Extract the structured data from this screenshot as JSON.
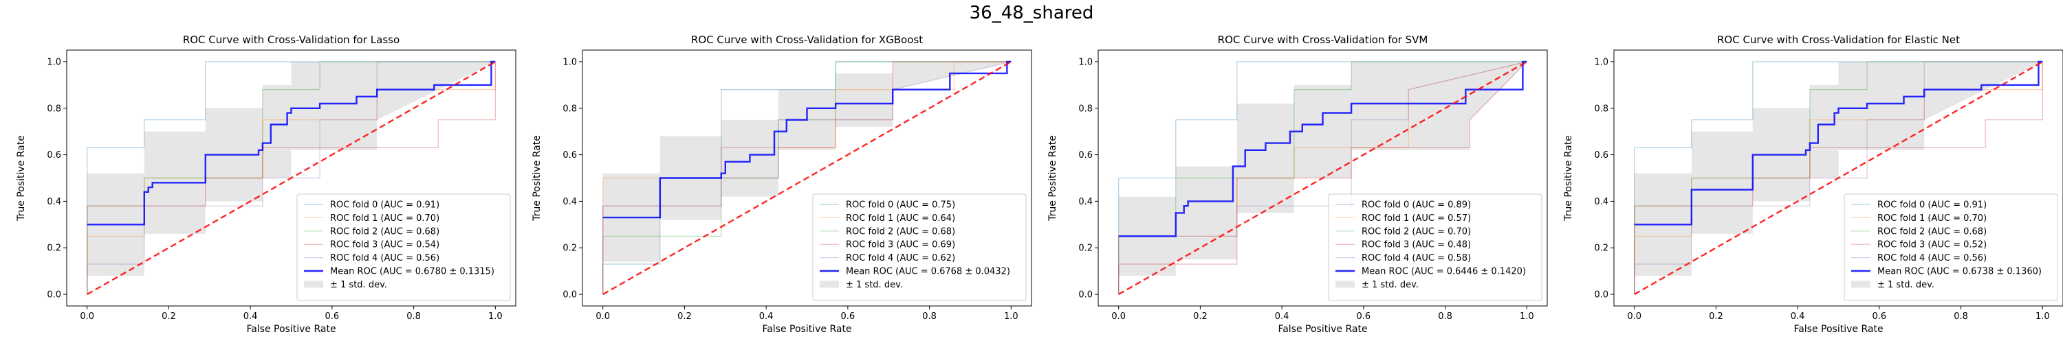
{
  "figure": {
    "suptitle": "36_48_shared"
  },
  "chart_data": [
    {
      "type": "line",
      "title": "ROC Curve with Cross-Validation for Lasso",
      "xlabel": "False Positive Rate",
      "ylabel": "True Positive Rate",
      "xlim": [
        -0.05,
        1.05
      ],
      "ylim": [
        -0.05,
        1.05
      ],
      "xticks": [
        "0.0",
        "0.2",
        "0.4",
        "0.6",
        "0.8",
        "1.0"
      ],
      "yticks": [
        "0.0",
        "0.2",
        "0.4",
        "0.6",
        "0.8",
        "1.0"
      ],
      "legend_position": "lower-right",
      "series": [
        {
          "name": "ROC fold 0 (AUC = 0.91)",
          "color": "#1f77b4",
          "x": [
            0,
            0,
            0.14,
            0.14,
            0.29,
            0.29,
            1
          ],
          "y": [
            0,
            0.63,
            0.63,
            0.75,
            0.75,
            1,
            1
          ]
        },
        {
          "name": "ROC fold 1 (AUC = 0.70)",
          "color": "#ff7f0e",
          "x": [
            0,
            0,
            0.14,
            0.14,
            0.43,
            0.43,
            0.71,
            0.71,
            1,
            1
          ],
          "y": [
            0,
            0.25,
            0.25,
            0.5,
            0.5,
            0.75,
            0.75,
            0.88,
            0.88,
            1
          ]
        },
        {
          "name": "ROC fold 2 (AUC = 0.68)",
          "color": "#2ca02c",
          "x": [
            0,
            0,
            0.14,
            0.14,
            0.43,
            0.43,
            0.57,
            0.57,
            1
          ],
          "y": [
            0,
            0.38,
            0.38,
            0.5,
            0.5,
            0.88,
            0.88,
            1,
            1
          ]
        },
        {
          "name": "ROC fold 3 (AUC = 0.54)",
          "color": "#d62728",
          "x": [
            0,
            0,
            0.29,
            0.29,
            0.43,
            0.43,
            0.86,
            0.86,
            1,
            1
          ],
          "y": [
            0,
            0.38,
            0.38,
            0.5,
            0.5,
            0.63,
            0.63,
            0.75,
            0.75,
            1
          ]
        },
        {
          "name": "ROC fold 4 (AUC = 0.56)",
          "color": "#9467bd",
          "x": [
            0,
            0,
            0.14,
            0.14,
            0.43,
            0.43,
            0.57,
            0.57,
            0.71,
            0.71,
            1
          ],
          "y": [
            0,
            0.13,
            0.13,
            0.38,
            0.38,
            0.5,
            0.5,
            0.75,
            0.75,
            1,
            1
          ]
        },
        {
          "name": "Mean ROC (AUC = 0.6780 ± 0.1315)",
          "color": "#0000ff",
          "role": "mean",
          "x": [
            0,
            0.14,
            0.14,
            0.15,
            0.15,
            0.16,
            0.16,
            0.29,
            0.29,
            0.42,
            0.42,
            0.43,
            0.43,
            0.45,
            0.45,
            0.49,
            0.49,
            0.5,
            0.5,
            0.57,
            0.57,
            0.66,
            0.66,
            0.71,
            0.71,
            0.85,
            0.85,
            0.99,
            0.99,
            1.0
          ],
          "y": [
            0.3,
            0.3,
            0.44,
            0.44,
            0.46,
            0.46,
            0.48,
            0.48,
            0.6,
            0.6,
            0.62,
            0.62,
            0.65,
            0.65,
            0.73,
            0.73,
            0.78,
            0.78,
            0.8,
            0.8,
            0.82,
            0.82,
            0.85,
            0.85,
            0.88,
            0.88,
            0.9,
            0.9,
            1.0,
            1.0
          ]
        }
      ],
      "std_band": {
        "name": "± 1 std. dev.",
        "color": "#808080",
        "x": [
          0,
          0.14,
          0.14,
          0.29,
          0.29,
          0.43,
          0.43,
          0.5,
          0.5,
          0.71,
          0.71,
          1.0
        ],
        "upper": [
          0.52,
          0.52,
          0.7,
          0.7,
          0.8,
          0.8,
          0.9,
          0.9,
          1.0,
          1.0,
          1.0,
          1.0
        ],
        "lower": [
          0.08,
          0.08,
          0.26,
          0.26,
          0.4,
          0.4,
          0.5,
          0.5,
          0.62,
          0.62,
          0.75,
          1.0
        ]
      },
      "chance_line": {
        "color": "#ff0000",
        "x": [
          0,
          1
        ],
        "y": [
          0,
          1
        ]
      }
    },
    {
      "type": "line",
      "title": "ROC Curve with Cross-Validation for XGBoost",
      "xlabel": "False Positive Rate",
      "ylabel": "True Positive Rate",
      "xlim": [
        -0.05,
        1.05
      ],
      "ylim": [
        -0.05,
        1.05
      ],
      "xticks": [
        "0.0",
        "0.2",
        "0.4",
        "0.6",
        "0.8",
        "1.0"
      ],
      "yticks": [
        "0.0",
        "0.2",
        "0.4",
        "0.6",
        "0.8",
        "1.0"
      ],
      "legend_position": "lower-right",
      "series": [
        {
          "name": "ROC fold 0 (AUC = 0.75)",
          "color": "#1f77b4",
          "x": [
            0,
            0,
            0.14,
            0.14,
            0.29,
            0.29,
            0.57,
            0.57,
            1
          ],
          "y": [
            0,
            0.13,
            0.13,
            0.5,
            0.5,
            0.88,
            0.88,
            1,
            1
          ]
        },
        {
          "name": "ROC fold 1 (AUC = 0.64)",
          "color": "#ff7f0e",
          "x": [
            0,
            0,
            0.43,
            0.43,
            0.57,
            0.57,
            0.86,
            0.86,
            1
          ],
          "y": [
            0,
            0.5,
            0.5,
            0.63,
            0.63,
            0.88,
            0.88,
            1,
            1
          ]
        },
        {
          "name": "ROC fold 2 (AUC = 0.68)",
          "color": "#2ca02c",
          "x": [
            0,
            0,
            0.29,
            0.29,
            0.43,
            0.43,
            0.57,
            0.57,
            1
          ],
          "y": [
            0,
            0.25,
            0.25,
            0.5,
            0.5,
            0.75,
            0.75,
            1,
            1
          ]
        },
        {
          "name": "ROC fold 3 (AUC = 0.69)",
          "color": "#d62728",
          "x": [
            0,
            0,
            0.29,
            0.29,
            0.57,
            0.57,
            0.71,
            0.71,
            1
          ],
          "y": [
            0,
            0.38,
            0.38,
            0.63,
            0.63,
            0.75,
            0.75,
            1,
            1
          ]
        },
        {
          "name": "ROC fold 4 (AUC = 0.62)",
          "color": "#9467bd",
          "x": [
            0,
            0,
            0.29,
            0.29,
            0.43,
            0.43,
            0.71,
            0.71,
            1
          ],
          "y": [
            0,
            0.38,
            0.38,
            0.5,
            0.5,
            0.75,
            0.75,
            0.88,
            1
          ]
        },
        {
          "name": "Mean ROC (AUC = 0.6768 ± 0.0432)",
          "color": "#0000ff",
          "role": "mean",
          "x": [
            0,
            0.14,
            0.14,
            0.29,
            0.29,
            0.3,
            0.3,
            0.36,
            0.36,
            0.42,
            0.42,
            0.45,
            0.45,
            0.5,
            0.5,
            0.57,
            0.57,
            0.71,
            0.71,
            0.85,
            0.85,
            0.99,
            0.99,
            1.0
          ],
          "y": [
            0.33,
            0.33,
            0.5,
            0.5,
            0.52,
            0.52,
            0.57,
            0.57,
            0.6,
            0.6,
            0.7,
            0.7,
            0.75,
            0.75,
            0.8,
            0.8,
            0.82,
            0.82,
            0.88,
            0.88,
            0.95,
            0.95,
            1.0,
            1.0
          ]
        }
      ],
      "std_band": {
        "name": "± 1 std. dev.",
        "color": "#808080",
        "x": [
          0,
          0.14,
          0.14,
          0.29,
          0.29,
          0.43,
          0.43,
          0.57,
          0.57,
          0.71,
          0.71,
          1.0
        ],
        "upper": [
          0.52,
          0.52,
          0.68,
          0.68,
          0.75,
          0.75,
          0.88,
          0.88,
          0.95,
          0.95,
          1.0,
          1.0
        ],
        "lower": [
          0.14,
          0.14,
          0.32,
          0.32,
          0.42,
          0.42,
          0.62,
          0.62,
          0.72,
          0.72,
          0.88,
          1.0
        ]
      },
      "chance_line": {
        "color": "#ff0000",
        "x": [
          0,
          1
        ],
        "y": [
          0,
          1
        ]
      }
    },
    {
      "type": "line",
      "title": "ROC Curve with Cross-Validation for SVM",
      "xlabel": "False Positive Rate",
      "ylabel": "True Positive Rate",
      "xlim": [
        -0.05,
        1.05
      ],
      "ylim": [
        -0.05,
        1.05
      ],
      "xticks": [
        "0.0",
        "0.2",
        "0.4",
        "0.6",
        "0.8",
        "1.0"
      ],
      "yticks": [
        "0.0",
        "0.2",
        "0.4",
        "0.6",
        "0.8",
        "1.0"
      ],
      "legend_position": "lower-right",
      "series": [
        {
          "name": "ROC fold 0 (AUC = 0.89)",
          "color": "#1f77b4",
          "x": [
            0,
            0,
            0.14,
            0.14,
            0.29,
            0.29,
            1
          ],
          "y": [
            0,
            0.5,
            0.5,
            0.75,
            0.75,
            1,
            1
          ]
        },
        {
          "name": "ROC fold 1 (AUC = 0.57)",
          "color": "#ff7f0e",
          "x": [
            0,
            0,
            0.29,
            0.29,
            0.43,
            0.43,
            0.71,
            0.71,
            1
          ],
          "y": [
            0,
            0.25,
            0.25,
            0.5,
            0.5,
            0.63,
            0.63,
            0.88,
            1
          ]
        },
        {
          "name": "ROC fold 2 (AUC = 0.70)",
          "color": "#2ca02c",
          "x": [
            0,
            0,
            0.14,
            0.14,
            0.43,
            0.43,
            0.57,
            0.57,
            1
          ],
          "y": [
            0,
            0.25,
            0.25,
            0.5,
            0.5,
            0.88,
            0.88,
            1,
            1
          ]
        },
        {
          "name": "ROC fold 3 (AUC = 0.48)",
          "color": "#d62728",
          "x": [
            0,
            0,
            0.29,
            0.29,
            0.57,
            0.57,
            0.86,
            0.86,
            1
          ],
          "y": [
            0,
            0.13,
            0.13,
            0.5,
            0.5,
            0.63,
            0.63,
            0.75,
            1
          ]
        },
        {
          "name": "ROC fold 4 (AUC = 0.58)",
          "color": "#9467bd",
          "x": [
            0,
            0,
            0.29,
            0.29,
            0.57,
            0.57,
            0.71,
            0.71,
            1
          ],
          "y": [
            0,
            0.25,
            0.25,
            0.38,
            0.38,
            0.75,
            0.75,
            0.88,
            1
          ]
        },
        {
          "name": "Mean ROC (AUC = 0.6446 ± 0.1420)",
          "color": "#0000ff",
          "role": "mean",
          "x": [
            0,
            0.14,
            0.14,
            0.16,
            0.16,
            0.17,
            0.17,
            0.28,
            0.28,
            0.31,
            0.31,
            0.36,
            0.36,
            0.42,
            0.42,
            0.45,
            0.45,
            0.5,
            0.5,
            0.57,
            0.57,
            0.85,
            0.85,
            0.99,
            0.99,
            1.0
          ],
          "y": [
            0.25,
            0.25,
            0.35,
            0.35,
            0.38,
            0.38,
            0.4,
            0.4,
            0.55,
            0.55,
            0.62,
            0.62,
            0.65,
            0.65,
            0.7,
            0.7,
            0.73,
            0.73,
            0.78,
            0.78,
            0.82,
            0.82,
            0.88,
            0.88,
            1.0,
            1.0
          ]
        }
      ],
      "std_band": {
        "name": "± 1 std. dev.",
        "color": "#808080",
        "x": [
          0,
          0.14,
          0.14,
          0.29,
          0.29,
          0.43,
          0.43,
          0.57,
          0.57,
          0.86,
          0.86,
          1.0
        ],
        "upper": [
          0.42,
          0.42,
          0.55,
          0.55,
          0.82,
          0.82,
          0.9,
          0.9,
          1.0,
          1.0,
          1.0,
          1.0
        ],
        "lower": [
          0.08,
          0.08,
          0.15,
          0.15,
          0.35,
          0.35,
          0.5,
          0.5,
          0.62,
          0.62,
          0.75,
          1.0
        ]
      },
      "chance_line": {
        "color": "#ff0000",
        "x": [
          0,
          1
        ],
        "y": [
          0,
          1
        ]
      }
    },
    {
      "type": "line",
      "title": "ROC Curve with Cross-Validation for Elastic Net",
      "xlabel": "False Positive Rate",
      "ylabel": "True Positive Rate",
      "xlim": [
        -0.05,
        1.05
      ],
      "ylim": [
        -0.05,
        1.05
      ],
      "xticks": [
        "0.0",
        "0.2",
        "0.4",
        "0.6",
        "0.8",
        "1.0"
      ],
      "yticks": [
        "0.0",
        "0.2",
        "0.4",
        "0.6",
        "0.8",
        "1.0"
      ],
      "legend_position": "lower-right",
      "series": [
        {
          "name": "ROC fold 0 (AUC = 0.91)",
          "color": "#1f77b4",
          "x": [
            0,
            0,
            0.14,
            0.14,
            0.29,
            0.29,
            1
          ],
          "y": [
            0,
            0.63,
            0.63,
            0.75,
            0.75,
            1,
            1
          ]
        },
        {
          "name": "ROC fold 1 (AUC = 0.70)",
          "color": "#ff7f0e",
          "x": [
            0,
            0,
            0.14,
            0.14,
            0.43,
            0.43,
            0.71,
            0.71,
            1,
            1
          ],
          "y": [
            0,
            0.25,
            0.25,
            0.5,
            0.5,
            0.75,
            0.75,
            0.88,
            0.88,
            1
          ]
        },
        {
          "name": "ROC fold 2 (AUC = 0.68)",
          "color": "#2ca02c",
          "x": [
            0,
            0,
            0.14,
            0.14,
            0.43,
            0.43,
            0.57,
            0.57,
            1
          ],
          "y": [
            0,
            0.38,
            0.38,
            0.5,
            0.5,
            0.88,
            0.88,
            1,
            1
          ]
        },
        {
          "name": "ROC fold 3 (AUC = 0.52)",
          "color": "#d62728",
          "x": [
            0,
            0,
            0.29,
            0.29,
            0.43,
            0.43,
            0.86,
            0.86,
            1,
            1
          ],
          "y": [
            0,
            0.38,
            0.38,
            0.5,
            0.5,
            0.63,
            0.63,
            0.75,
            0.75,
            1
          ]
        },
        {
          "name": "ROC fold 4 (AUC = 0.56)",
          "color": "#9467bd",
          "x": [
            0,
            0,
            0.14,
            0.14,
            0.43,
            0.43,
            0.57,
            0.57,
            0.71,
            0.71,
            1
          ],
          "y": [
            0,
            0.13,
            0.13,
            0.38,
            0.38,
            0.5,
            0.5,
            0.75,
            0.75,
            1,
            1
          ]
        },
        {
          "name": "Mean ROC (AUC = 0.6738 ± 0.1360)",
          "color": "#0000ff",
          "role": "mean",
          "x": [
            0,
            0.14,
            0.14,
            0.29,
            0.29,
            0.42,
            0.42,
            0.43,
            0.43,
            0.45,
            0.45,
            0.49,
            0.49,
            0.5,
            0.5,
            0.57,
            0.57,
            0.66,
            0.66,
            0.71,
            0.71,
            0.85,
            0.85,
            0.99,
            0.99,
            1.0
          ],
          "y": [
            0.3,
            0.3,
            0.45,
            0.45,
            0.6,
            0.6,
            0.62,
            0.62,
            0.65,
            0.65,
            0.73,
            0.73,
            0.78,
            0.78,
            0.8,
            0.8,
            0.82,
            0.82,
            0.85,
            0.85,
            0.88,
            0.88,
            0.9,
            0.9,
            1.0,
            1.0
          ]
        }
      ],
      "std_band": {
        "name": "± 1 std. dev.",
        "color": "#808080",
        "x": [
          0,
          0.14,
          0.14,
          0.29,
          0.29,
          0.43,
          0.43,
          0.5,
          0.5,
          0.71,
          0.71,
          1.0
        ],
        "upper": [
          0.52,
          0.52,
          0.7,
          0.7,
          0.8,
          0.8,
          0.9,
          0.9,
          1.0,
          1.0,
          1.0,
          1.0
        ],
        "lower": [
          0.08,
          0.08,
          0.26,
          0.26,
          0.4,
          0.4,
          0.5,
          0.5,
          0.62,
          0.62,
          0.75,
          1.0
        ]
      },
      "chance_line": {
        "color": "#ff0000",
        "x": [
          0,
          1
        ],
        "y": [
          0,
          1
        ]
      }
    }
  ]
}
